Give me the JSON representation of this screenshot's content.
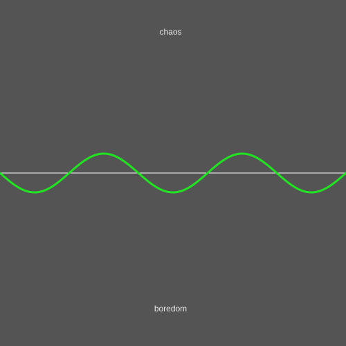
{
  "scale": {
    "top_label": "chaos",
    "bottom_label": "boredom"
  },
  "wave": {
    "cycles_visible": 2.5,
    "relative_amplitude": 0.14,
    "start_phase": "descending",
    "color": "#22e322"
  },
  "baseline": {
    "color": "#ffffff"
  },
  "colors": {
    "background": "#545454",
    "text": "#e8e8e8"
  }
}
